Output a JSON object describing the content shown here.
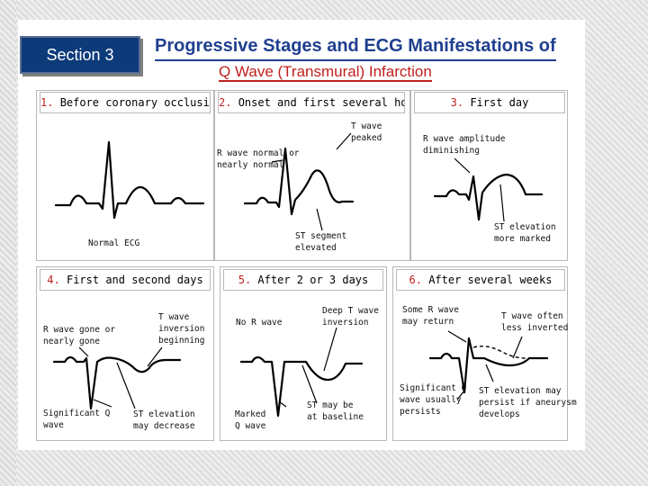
{
  "section": "Section 3",
  "title": "Progressive Stages and ECG Manifestations of",
  "subtitle": "Q Wave (Transmural) Infarction",
  "stages": [
    {
      "num": "1.",
      "label": "Before coronary occlusion",
      "notes": [
        "Normal ECG"
      ]
    },
    {
      "num": "2.",
      "label": "Onset and first several hours",
      "notes": [
        "R wave normal or\nnearly normal",
        "T wave\npeaked",
        "ST segment\nelevated"
      ]
    },
    {
      "num": "3.",
      "label": "First day",
      "notes": [
        "R wave amplitude\ndiminishing",
        "ST elevation\nmore marked"
      ]
    },
    {
      "num": "4.",
      "label": "First and second days",
      "notes": [
        "R wave gone or\nnearly gone",
        "T wave\ninversion\nbeginning",
        "Significant Q\nwave",
        "ST elevation\nmay decrease"
      ]
    },
    {
      "num": "5.",
      "label": "After 2 or 3 days",
      "notes": [
        "No R wave",
        "Deep T wave\ninversion",
        "Marked\nQ wave",
        "ST may be\nat baseline"
      ]
    },
    {
      "num": "6.",
      "label": "After several weeks",
      "notes": [
        "Some R wave\nmay return",
        "T wave often\nless inverted",
        "Significant Q\nwave usually\npersists",
        "ST elevation may\npersist if aneurysm\ndevelops"
      ]
    }
  ]
}
